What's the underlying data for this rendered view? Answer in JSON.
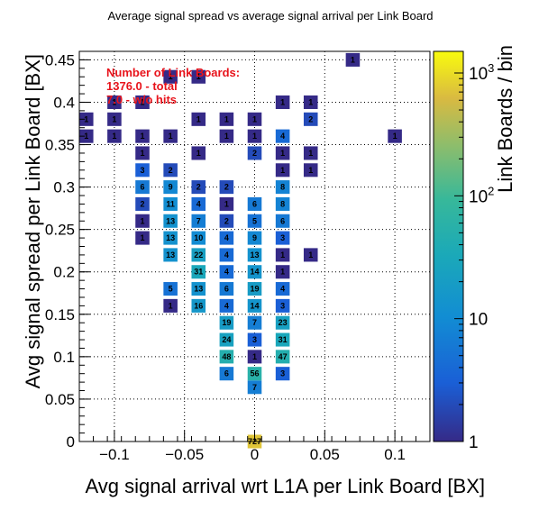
{
  "chart_data": {
    "type": "heatmap",
    "title": "Average signal spread vs average signal arrival per Link Board",
    "xlabel": "Avg signal arrival wrt L1A per Link Board [BX]",
    "ylabel": "Avg signal spread per Link Board [BX]",
    "zlabel": "Link Boards / bin",
    "xlim": [
      -0.125,
      0.125
    ],
    "ylim": [
      0,
      0.46
    ],
    "zlim": [
      1,
      1500
    ],
    "zscale": "log",
    "x_bin_width": 0.01,
    "y_bin_width": 0.016,
    "x_ticks": [
      {
        "value": -0.1,
        "label": "−0.1"
      },
      {
        "value": -0.05,
        "label": "−0.05"
      },
      {
        "value": 0,
        "label": "0"
      },
      {
        "value": 0.05,
        "label": "0.05"
      },
      {
        "value": 0.1,
        "label": "0.1"
      }
    ],
    "y_ticks": [
      {
        "value": 0,
        "label": "0"
      },
      {
        "value": 0.05,
        "label": "0.05"
      },
      {
        "value": 0.1,
        "label": "0.1"
      },
      {
        "value": 0.15,
        "label": "0.15"
      },
      {
        "value": 0.2,
        "label": "0.2"
      },
      {
        "value": 0.25,
        "label": "0.25"
      },
      {
        "value": 0.3,
        "label": "0.3"
      },
      {
        "value": 0.35,
        "label": "0.35"
      },
      {
        "value": 0.4,
        "label": "0.4"
      },
      {
        "value": 0.45,
        "label": "0.45"
      }
    ],
    "z_ticks": [
      {
        "value": 1,
        "label": "1"
      },
      {
        "value": 10,
        "label": "10"
      },
      {
        "value": 100,
        "label": "10^2"
      },
      {
        "value": 1000,
        "label": "10^3"
      }
    ],
    "grid": true,
    "annotation": [
      "Number of Link Boards:",
      "1376.0 - total",
      "7.0 - w/o hits"
    ],
    "cells": [
      {
        "x": 0.0,
        "y": 0.0,
        "v": 727
      },
      {
        "x": 0.0,
        "y": 0.064,
        "v": 7
      },
      {
        "x": -0.02,
        "y": 0.08,
        "v": 6
      },
      {
        "x": 0.0,
        "y": 0.08,
        "v": 56
      },
      {
        "x": 0.02,
        "y": 0.08,
        "v": 3
      },
      {
        "x": -0.02,
        "y": 0.1,
        "v": 48
      },
      {
        "x": 0.0,
        "y": 0.1,
        "v": 1
      },
      {
        "x": 0.02,
        "y": 0.1,
        "v": 47
      },
      {
        "x": -0.02,
        "y": 0.12,
        "v": 24
      },
      {
        "x": 0.0,
        "y": 0.12,
        "v": 3
      },
      {
        "x": 0.02,
        "y": 0.12,
        "v": 31
      },
      {
        "x": -0.02,
        "y": 0.14,
        "v": 19
      },
      {
        "x": 0.0,
        "y": 0.14,
        "v": 7
      },
      {
        "x": 0.02,
        "y": 0.14,
        "v": 23
      },
      {
        "x": -0.06,
        "y": 0.16,
        "v": 1
      },
      {
        "x": -0.04,
        "y": 0.16,
        "v": 16
      },
      {
        "x": -0.02,
        "y": 0.16,
        "v": 4
      },
      {
        "x": 0.0,
        "y": 0.16,
        "v": 14
      },
      {
        "x": 0.02,
        "y": 0.16,
        "v": 3
      },
      {
        "x": -0.06,
        "y": 0.18,
        "v": 5
      },
      {
        "x": -0.04,
        "y": 0.18,
        "v": 13
      },
      {
        "x": -0.02,
        "y": 0.18,
        "v": 6
      },
      {
        "x": 0.0,
        "y": 0.18,
        "v": 19
      },
      {
        "x": 0.02,
        "y": 0.18,
        "v": 4
      },
      {
        "x": -0.04,
        "y": 0.2,
        "v": 31
      },
      {
        "x": -0.02,
        "y": 0.2,
        "v": 4
      },
      {
        "x": 0.0,
        "y": 0.2,
        "v": 14
      },
      {
        "x": 0.02,
        "y": 0.2,
        "v": 1
      },
      {
        "x": -0.06,
        "y": 0.22,
        "v": 13
      },
      {
        "x": -0.04,
        "y": 0.22,
        "v": 22
      },
      {
        "x": -0.02,
        "y": 0.22,
        "v": 4
      },
      {
        "x": 0.0,
        "y": 0.22,
        "v": 13
      },
      {
        "x": 0.02,
        "y": 0.22,
        "v": 1
      },
      {
        "x": 0.04,
        "y": 0.22,
        "v": 1
      },
      {
        "x": -0.08,
        "y": 0.24,
        "v": 1
      },
      {
        "x": -0.06,
        "y": 0.24,
        "v": 13
      },
      {
        "x": -0.04,
        "y": 0.24,
        "v": 10
      },
      {
        "x": -0.02,
        "y": 0.24,
        "v": 4
      },
      {
        "x": 0.0,
        "y": 0.24,
        "v": 9
      },
      {
        "x": 0.02,
        "y": 0.24,
        "v": 3
      },
      {
        "x": -0.08,
        "y": 0.26,
        "v": 1
      },
      {
        "x": -0.06,
        "y": 0.26,
        "v": 13
      },
      {
        "x": -0.04,
        "y": 0.26,
        "v": 7
      },
      {
        "x": -0.02,
        "y": 0.26,
        "v": 2
      },
      {
        "x": 0.0,
        "y": 0.26,
        "v": 5
      },
      {
        "x": 0.02,
        "y": 0.26,
        "v": 6
      },
      {
        "x": -0.08,
        "y": 0.28,
        "v": 2
      },
      {
        "x": -0.06,
        "y": 0.28,
        "v": 11
      },
      {
        "x": -0.04,
        "y": 0.28,
        "v": 4
      },
      {
        "x": -0.02,
        "y": 0.28,
        "v": 1
      },
      {
        "x": 0.0,
        "y": 0.28,
        "v": 6
      },
      {
        "x": 0.02,
        "y": 0.28,
        "v": 8
      },
      {
        "x": -0.08,
        "y": 0.3,
        "v": 6
      },
      {
        "x": -0.06,
        "y": 0.3,
        "v": 9
      },
      {
        "x": -0.04,
        "y": 0.3,
        "v": 2
      },
      {
        "x": -0.02,
        "y": 0.3,
        "v": 2
      },
      {
        "x": 0.02,
        "y": 0.3,
        "v": 8
      },
      {
        "x": -0.08,
        "y": 0.32,
        "v": 3
      },
      {
        "x": -0.06,
        "y": 0.32,
        "v": 2
      },
      {
        "x": 0.02,
        "y": 0.32,
        "v": 1
      },
      {
        "x": 0.04,
        "y": 0.32,
        "v": 1
      },
      {
        "x": -0.08,
        "y": 0.34,
        "v": 1
      },
      {
        "x": -0.04,
        "y": 0.34,
        "v": 1
      },
      {
        "x": 0.0,
        "y": 0.34,
        "v": 2
      },
      {
        "x": 0.02,
        "y": 0.34,
        "v": 1
      },
      {
        "x": 0.04,
        "y": 0.34,
        "v": 1
      },
      {
        "x": -0.12,
        "y": 0.36,
        "v": 1
      },
      {
        "x": -0.1,
        "y": 0.36,
        "v": 1
      },
      {
        "x": -0.08,
        "y": 0.36,
        "v": 1
      },
      {
        "x": -0.06,
        "y": 0.36,
        "v": 1
      },
      {
        "x": -0.02,
        "y": 0.36,
        "v": 1
      },
      {
        "x": 0.0,
        "y": 0.36,
        "v": 1
      },
      {
        "x": 0.02,
        "y": 0.36,
        "v": 4
      },
      {
        "x": 0.1,
        "y": 0.36,
        "v": 1
      },
      {
        "x": -0.12,
        "y": 0.38,
        "v": 1
      },
      {
        "x": -0.1,
        "y": 0.38,
        "v": 1
      },
      {
        "x": -0.04,
        "y": 0.38,
        "v": 1
      },
      {
        "x": -0.02,
        "y": 0.38,
        "v": 1
      },
      {
        "x": 0.0,
        "y": 0.38,
        "v": 1
      },
      {
        "x": 0.04,
        "y": 0.38,
        "v": 2
      },
      {
        "x": -0.1,
        "y": 0.4,
        "v": 1
      },
      {
        "x": -0.08,
        "y": 0.4,
        "v": 1
      },
      {
        "x": 0.02,
        "y": 0.4,
        "v": 1
      },
      {
        "x": 0.04,
        "y": 0.4,
        "v": 1
      },
      {
        "x": -0.06,
        "y": 0.43,
        "v": 1
      },
      {
        "x": -0.04,
        "y": 0.43,
        "v": 1
      },
      {
        "x": 0.07,
        "y": 0.45,
        "v": 1
      }
    ]
  }
}
